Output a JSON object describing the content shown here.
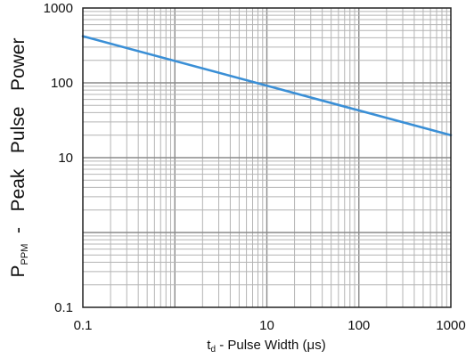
{
  "chart_data": {
    "type": "line",
    "x_scale": "log",
    "y_scale": "log",
    "xlim": [
      0.1,
      1000
    ],
    "ylim": [
      0.1,
      1000
    ],
    "x_ticks": [
      0.1,
      10,
      100,
      1000
    ],
    "x_tick_labels": [
      "0.1",
      "10",
      "100",
      "1000"
    ],
    "y_ticks": [
      0.1,
      10,
      100,
      1000
    ],
    "y_tick_labels": [
      "0.1",
      "10",
      "100",
      "1000"
    ],
    "xlabel": {
      "sym": "t",
      "sub": "d",
      "rest": " - Pulse Width (μs)"
    },
    "ylabel": {
      "sym": "P",
      "sub": "PPM",
      "rest": "  -   Peak   Pulse   Power"
    },
    "grid": true,
    "series": [
      {
        "color": "#3a8fd6",
        "x": [
          0.1,
          1000
        ],
        "y": [
          420,
          20
        ]
      }
    ]
  }
}
